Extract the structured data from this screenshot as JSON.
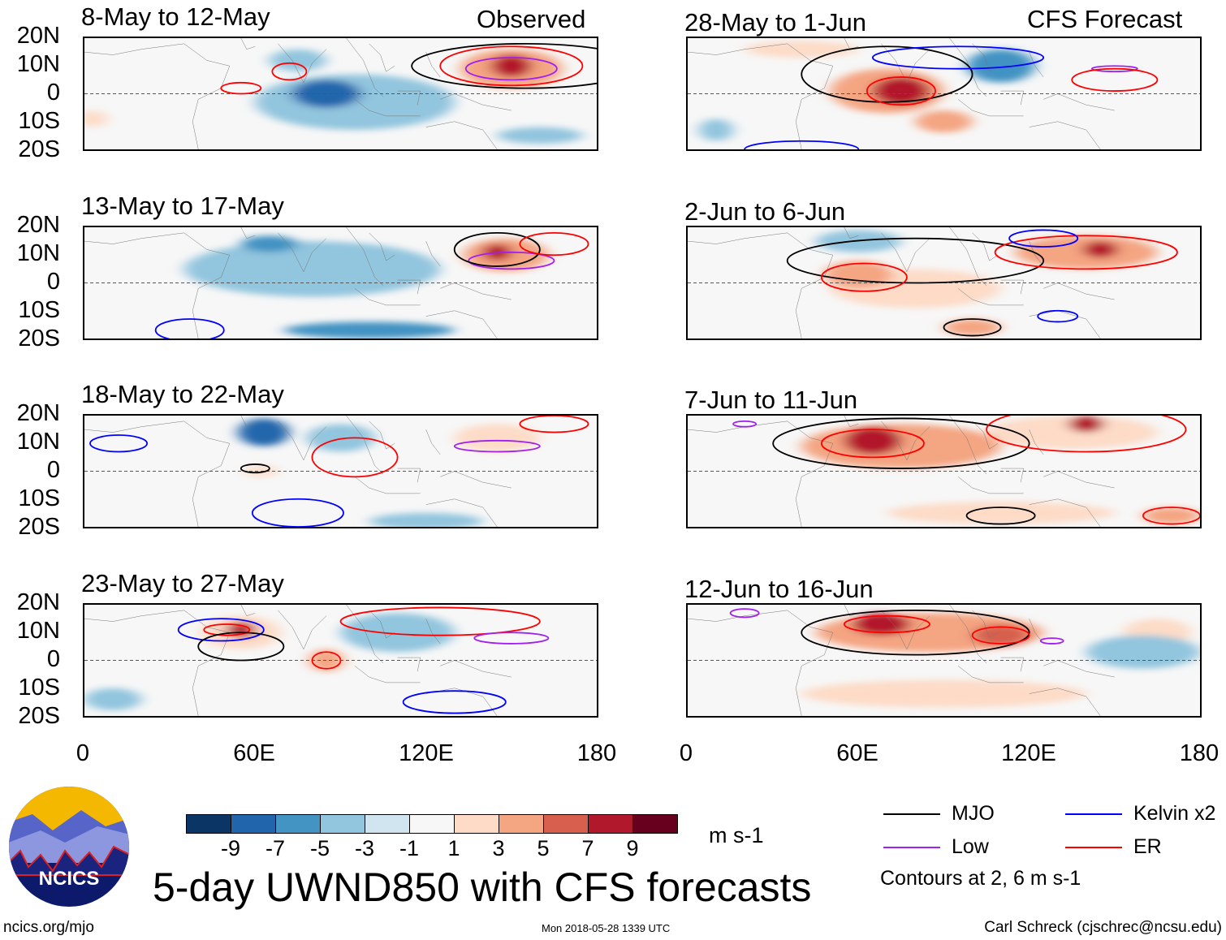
{
  "header": {
    "observed_label": "Observed",
    "forecast_label": "CFS Forecast"
  },
  "chart_data": {
    "type": "heatmap",
    "title": "5-day UWND850 with CFS forecasts",
    "variable": "850-hPa zonal wind anomaly",
    "units": "m s-1",
    "xlim": [
      0,
      180
    ],
    "ylim": [
      -20,
      20
    ],
    "x_ticks": [
      "0",
      "60E",
      "120E",
      "180"
    ],
    "y_ticks": [
      "20N",
      "10N",
      "0",
      "10S",
      "20S"
    ],
    "colorbar": {
      "levels": [
        "-9",
        "-7",
        "-5",
        "-3",
        "-1",
        "1",
        "3",
        "5",
        "7",
        "9"
      ],
      "colors": [
        "#0b3565",
        "#2166ac",
        "#4393c3",
        "#92c5de",
        "#d1e5f0",
        "#f7f7f7",
        "#fddbc7",
        "#f4a582",
        "#d6604d",
        "#b2182b",
        "#67001f"
      ]
    },
    "legend": [
      {
        "label": "MJO",
        "color": "#000000"
      },
      {
        "label": "Kelvin x2",
        "color": "#0000ff"
      },
      {
        "label": "Low",
        "color": "#a020f0"
      },
      {
        "label": "ER",
        "color": "#ff0000"
      }
    ],
    "contour_note": "Contours at 2, 6 m s-1",
    "panels": [
      {
        "title": "8-May to 12-May",
        "column": "observed",
        "anomalies": [
          {
            "lon": 95,
            "lat": -3,
            "v": -4,
            "rx": 35,
            "ry": 10
          },
          {
            "lon": 85,
            "lat": 0,
            "v": -8,
            "rx": 12,
            "ry": 5
          },
          {
            "lon": 75,
            "lat": 12,
            "v": -3,
            "rx": 10,
            "ry": 4
          },
          {
            "lon": 150,
            "lat": 9,
            "v": 5,
            "rx": 18,
            "ry": 7
          },
          {
            "lon": 150,
            "lat": 10,
            "v": 9,
            "rx": 7,
            "ry": 4
          },
          {
            "lon": 160,
            "lat": -15,
            "v": -3,
            "rx": 15,
            "ry": 3
          },
          {
            "lon": 3,
            "lat": -9,
            "v": 3,
            "rx": 5,
            "ry": 3
          }
        ],
        "contours": [
          {
            "type": "ER",
            "lon": 72,
            "lat": 8,
            "rx": 6,
            "ry": 3
          },
          {
            "lon": 55,
            "lat": 2,
            "type": "ER",
            "rx": 7,
            "ry": 2
          },
          {
            "type": "ER",
            "lon": 150,
            "lat": 10,
            "rx": 25,
            "ry": 7
          },
          {
            "type": "Low",
            "lon": 150,
            "lat": 9,
            "rx": 16,
            "ry": 4
          },
          {
            "type": "MJO",
            "lon": 155,
            "lat": 10,
            "rx": 40,
            "ry": 8
          }
        ]
      },
      {
        "title": "13-May to 17-May",
        "column": "observed",
        "anomalies": [
          {
            "lon": 80,
            "lat": 5,
            "v": -4,
            "rx": 45,
            "ry": 10
          },
          {
            "lon": 100,
            "lat": -17,
            "v": -5,
            "rx": 30,
            "ry": 3
          },
          {
            "lon": 65,
            "lat": 14,
            "v": -5,
            "rx": 10,
            "ry": 3
          },
          {
            "lon": 148,
            "lat": 10,
            "v": 5,
            "rx": 15,
            "ry": 6
          },
          {
            "lon": 145,
            "lat": 11,
            "v": 8,
            "rx": 5,
            "ry": 3
          }
        ],
        "contours": [
          {
            "type": "Kelvin x2",
            "lon": 37,
            "lat": -17,
            "rx": 12,
            "ry": 4
          },
          {
            "type": "Low",
            "lon": 150,
            "lat": 8,
            "rx": 15,
            "ry": 3
          },
          {
            "type": "MJO",
            "lon": 145,
            "lat": 12,
            "rx": 15,
            "ry": 6
          },
          {
            "type": "ER",
            "lon": 165,
            "lat": 14,
            "rx": 12,
            "ry": 4
          }
        ]
      },
      {
        "title": "18-May to 22-May",
        "column": "observed",
        "anomalies": [
          {
            "lon": 63,
            "lat": 14,
            "v": -8,
            "rx": 9,
            "ry": 5
          },
          {
            "lon": 90,
            "lat": 12,
            "v": -4,
            "rx": 12,
            "ry": 5
          },
          {
            "lon": 62,
            "lat": 0,
            "v": 3,
            "rx": 6,
            "ry": 2
          },
          {
            "lon": 145,
            "lat": 12,
            "v": 3,
            "rx": 15,
            "ry": 5
          },
          {
            "lon": 120,
            "lat": -18,
            "v": -4,
            "rx": 20,
            "ry": 3
          }
        ],
        "contours": [
          {
            "type": "Kelvin x2",
            "lon": 12,
            "lat": 10,
            "rx": 10,
            "ry": 3
          },
          {
            "type": "Kelvin x2",
            "lon": 75,
            "lat": -15,
            "rx": 16,
            "ry": 5
          },
          {
            "type": "ER",
            "lon": 95,
            "lat": 5,
            "rx": 15,
            "ry": 7
          },
          {
            "type": "Low",
            "lon": 145,
            "lat": 9,
            "rx": 15,
            "ry": 2
          },
          {
            "type": "MJO",
            "lon": 60,
            "lat": 1,
            "rx": 5,
            "ry": 1.5
          },
          {
            "type": "ER",
            "lon": 165,
            "lat": 17,
            "rx": 12,
            "ry": 3
          }
        ]
      },
      {
        "title": "23-May to 27-May",
        "column": "observed",
        "anomalies": [
          {
            "lon": 55,
            "lat": 11,
            "v": 8,
            "rx": 5,
            "ry": 3
          },
          {
            "lon": 55,
            "lat": 10,
            "v": 3,
            "rx": 14,
            "ry": 6
          },
          {
            "lon": 85,
            "lat": 0,
            "v": 5,
            "rx": 6,
            "ry": 4
          },
          {
            "lon": 110,
            "lat": 10,
            "v": -4,
            "rx": 20,
            "ry": 7
          },
          {
            "lon": 10,
            "lat": -14,
            "v": -3,
            "rx": 10,
            "ry": 4
          }
        ],
        "contours": [
          {
            "type": "Kelvin x2",
            "lon": 48,
            "lat": 11,
            "rx": 15,
            "ry": 4
          },
          {
            "type": "ER",
            "lon": 50,
            "lat": 11,
            "rx": 8,
            "ry": 2
          },
          {
            "type": "MJO",
            "lon": 55,
            "lat": 5,
            "rx": 15,
            "ry": 5
          },
          {
            "type": "ER",
            "lon": 85,
            "lat": 0,
            "rx": 5,
            "ry": 3
          },
          {
            "type": "ER",
            "lon": 125,
            "lat": 14,
            "rx": 35,
            "ry": 5
          },
          {
            "type": "Low",
            "lon": 150,
            "lat": 8,
            "rx": 13,
            "ry": 2
          },
          {
            "type": "Kelvin x2",
            "lon": 130,
            "lat": -15,
            "rx": 18,
            "ry": 4
          }
        ]
      },
      {
        "title": "28-May to 1-Jun",
        "column": "forecast",
        "anomalies": [
          {
            "lon": 75,
            "lat": 1,
            "v": 8,
            "rx": 10,
            "ry": 5
          },
          {
            "lon": 70,
            "lat": 1,
            "v": 4,
            "rx": 20,
            "ry": 8
          },
          {
            "lon": 110,
            "lat": 10,
            "v": -5,
            "rx": 12,
            "ry": 6
          },
          {
            "lon": 90,
            "lat": -10,
            "v": 4,
            "rx": 10,
            "ry": 4
          },
          {
            "lon": 40,
            "lat": 16,
            "v": 3,
            "rx": 20,
            "ry": 3
          },
          {
            "lon": 10,
            "lat": -13,
            "v": -3,
            "rx": 6,
            "ry": 4
          }
        ],
        "contours": [
          {
            "type": "MJO",
            "lon": 70,
            "lat": 7,
            "rx": 30,
            "ry": 10
          },
          {
            "type": "ER",
            "lon": 75,
            "lat": 1,
            "rx": 12,
            "ry": 5
          },
          {
            "type": "Kelvin x2",
            "lon": 95,
            "lat": 13,
            "rx": 30,
            "ry": 4
          },
          {
            "type": "Low",
            "lon": 150,
            "lat": 9,
            "rx": 8,
            "ry": 1
          },
          {
            "type": "ER",
            "lon": 150,
            "lat": 5,
            "rx": 15,
            "ry": 4
          },
          {
            "type": "Kelvin x2",
            "lon": 40,
            "lat": -20,
            "rx": 20,
            "ry": 3
          }
        ]
      },
      {
        "title": "2-Jun to 6-Jun",
        "column": "forecast",
        "anomalies": [
          {
            "lon": 145,
            "lat": 12,
            "v": 8,
            "rx": 6,
            "ry": 3
          },
          {
            "lon": 140,
            "lat": 11,
            "v": 4,
            "rx": 25,
            "ry": 6
          },
          {
            "lon": 60,
            "lat": 3,
            "v": 5,
            "rx": 12,
            "ry": 5
          },
          {
            "lon": 80,
            "lat": -2,
            "v": 3,
            "rx": 30,
            "ry": 7
          },
          {
            "lon": 60,
            "lat": 15,
            "v": -4,
            "rx": 15,
            "ry": 4
          },
          {
            "lon": 100,
            "lat": -16,
            "v": 5,
            "rx": 10,
            "ry": 3
          }
        ],
        "contours": [
          {
            "type": "MJO",
            "lon": 80,
            "lat": 8,
            "rx": 45,
            "ry": 8
          },
          {
            "type": "ER",
            "lon": 62,
            "lat": 2,
            "rx": 15,
            "ry": 5
          },
          {
            "type": "ER",
            "lon": 140,
            "lat": 11,
            "rx": 32,
            "ry": 6
          },
          {
            "type": "Kelvin x2",
            "lon": 125,
            "lat": 16,
            "rx": 12,
            "ry": 3
          },
          {
            "type": "MJO",
            "lon": 100,
            "lat": -16,
            "rx": 10,
            "ry": 3
          },
          {
            "type": "Kelvin x2",
            "lon": 130,
            "lat": -12,
            "rx": 7,
            "ry": 2
          }
        ]
      },
      {
        "title": "7-Jun to 11-Jun",
        "column": "forecast",
        "anomalies": [
          {
            "lon": 65,
            "lat": 11,
            "v": 8,
            "rx": 10,
            "ry": 5
          },
          {
            "lon": 75,
            "lat": 9,
            "v": 4,
            "rx": 35,
            "ry": 8
          },
          {
            "lon": 140,
            "lat": 17,
            "v": 8,
            "rx": 6,
            "ry": 3
          },
          {
            "lon": 135,
            "lat": 14,
            "v": 3,
            "rx": 30,
            "ry": 6
          },
          {
            "lon": 110,
            "lat": -15,
            "v": 3,
            "rx": 40,
            "ry": 4
          },
          {
            "lon": 170,
            "lat": -16,
            "v": 4,
            "rx": 10,
            "ry": 3
          }
        ],
        "contours": [
          {
            "type": "MJO",
            "lon": 75,
            "lat": 10,
            "rx": 45,
            "ry": 9
          },
          {
            "type": "ER",
            "lon": 65,
            "lat": 10,
            "rx": 18,
            "ry": 5
          },
          {
            "type": "ER",
            "lon": 140,
            "lat": 15,
            "rx": 35,
            "ry": 8
          },
          {
            "type": "Low",
            "lon": 20,
            "lat": 17,
            "rx": 4,
            "ry": 1
          },
          {
            "type": "MJO",
            "lon": 110,
            "lat": -16,
            "rx": 12,
            "ry": 3
          },
          {
            "type": "ER",
            "lon": 170,
            "lat": -16,
            "rx": 10,
            "ry": 3
          }
        ]
      },
      {
        "title": "12-Jun to 16-Jun",
        "column": "forecast",
        "anomalies": [
          {
            "lon": 68,
            "lat": 13,
            "v": 8,
            "rx": 10,
            "ry": 4
          },
          {
            "lon": 85,
            "lat": 10,
            "v": 4,
            "rx": 40,
            "ry": 7
          },
          {
            "lon": 110,
            "lat": 9,
            "v": 6,
            "rx": 10,
            "ry": 4
          },
          {
            "lon": 90,
            "lat": -12,
            "v": 3,
            "rx": 50,
            "ry": 5
          },
          {
            "lon": 165,
            "lat": 10,
            "v": 3,
            "rx": 12,
            "ry": 5
          },
          {
            "lon": 160,
            "lat": 3,
            "v": -3,
            "rx": 20,
            "ry": 6
          }
        ],
        "contours": [
          {
            "type": "MJO",
            "lon": 80,
            "lat": 10,
            "rx": 40,
            "ry": 8
          },
          {
            "type": "ER",
            "lon": 70,
            "lat": 13,
            "rx": 15,
            "ry": 3
          },
          {
            "type": "ER",
            "lon": 110,
            "lat": 9,
            "rx": 10,
            "ry": 3
          },
          {
            "type": "Low",
            "lon": 20,
            "lat": 17,
            "rx": 5,
            "ry": 1.5
          },
          {
            "type": "Low",
            "lon": 128,
            "lat": 7,
            "rx": 4,
            "ry": 1
          }
        ]
      }
    ]
  },
  "footer": {
    "logo_text": "NCICS",
    "site": "ncics.org/mjo",
    "timestamp": "Mon 2018-05-28 1339 UTC",
    "author": "Carl Schreck (cjschrec@ncsu.edu)"
  }
}
